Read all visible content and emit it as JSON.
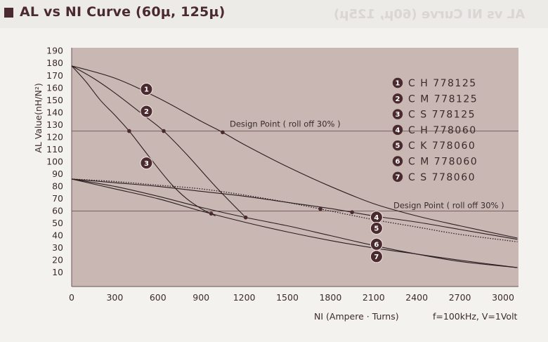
{
  "header": {
    "title": "AL vs NI Curve (60μ, 125μ)"
  },
  "colors": {
    "plot_bg": "#c9b7b4",
    "curve": "#2b1e20",
    "marker": "#4a2a2e",
    "header_mark": "#4a2a2e"
  },
  "chart_data": {
    "type": "line",
    "title": "AL vs NI Curve (60μ, 125μ)",
    "xlabel": "NI (Ampere · Turns)",
    "ylabel": "AL Value(nH/N²)",
    "xlim": [
      0,
      3100
    ],
    "ylim": [
      0,
      190
    ],
    "xticks": [
      "0",
      "300",
      "600",
      "900",
      "1200",
      "1500",
      "1800",
      "2100",
      "2400",
      "2700",
      "3000"
    ],
    "yticks": [
      "10",
      "20",
      "30",
      "40",
      "50",
      "60",
      "70",
      "80",
      "90",
      "100",
      "110",
      "120",
      "130",
      "140",
      "150",
      "160",
      "170",
      "180",
      "190"
    ],
    "grid": false,
    "conditions": "f=100kHz, V=1Volt",
    "design_points": [
      {
        "label": "Design Point ( roll off 30% )",
        "y": 125
      },
      {
        "label": "Design Point ( roll off 30% )",
        "y": 60
      }
    ],
    "legend": [
      {
        "num": "1",
        "text": "C H 778125"
      },
      {
        "num": "2",
        "text": "C M 778125"
      },
      {
        "num": "3",
        "text": "C S 778125"
      },
      {
        "num": "4",
        "text": "C H 778060"
      },
      {
        "num": "5",
        "text": "C K 778060"
      },
      {
        "num": "6",
        "text": "C M 778060"
      },
      {
        "num": "7",
        "text": "C S 778060"
      }
    ],
    "series": [
      {
        "id": "1",
        "style": "solid",
        "x": [
          0,
          300,
          600,
          900,
          1050,
          1200,
          1500,
          1800,
          2100,
          2400,
          2700,
          3100
        ],
        "y": [
          178,
          168,
          152,
          133,
          124,
          114,
          96,
          80,
          66,
          56,
          48,
          38
        ],
        "label_at": [
          520,
          159
        ],
        "marker_x": 1050
      },
      {
        "id": "2",
        "style": "solid",
        "x": [
          0,
          150,
          300,
          500,
          640,
          800,
          1000,
          1200
        ],
        "y": [
          178,
          168,
          156,
          138,
          125,
          106,
          80,
          56
        ],
        "label_at": [
          520,
          141
        ],
        "marker_x": 640
      },
      {
        "id": "3",
        "style": "solid",
        "x": [
          0,
          100,
          200,
          300,
          400,
          500,
          600,
          700,
          800,
          900,
          1000
        ],
        "y": [
          178,
          165,
          150,
          138,
          125,
          110,
          95,
          81,
          70,
          62,
          56
        ],
        "label_at": [
          520,
          99
        ],
        "marker_x": 400
      },
      {
        "id": "4",
        "style": "solid",
        "x": [
          0,
          300,
          600,
          900,
          1200,
          1500,
          1800,
          2100,
          2400,
          2700,
          3100
        ],
        "y": [
          86,
          83,
          80,
          76,
          72,
          67,
          62,
          56,
          51,
          45,
          37
        ],
        "label_at": [
          2120,
          55
        ],
        "marker_x": 1950
      },
      {
        "id": "5",
        "style": "dotted",
        "x": [
          0,
          300,
          600,
          900,
          1200,
          1500,
          1800,
          2100,
          2400,
          2700,
          3100
        ],
        "y": [
          86,
          84,
          81,
          78,
          73,
          67,
          60,
          53,
          47,
          41,
          35
        ],
        "label_at": [
          2120,
          46
        ],
        "marker_x": 1730
      },
      {
        "id": "6",
        "style": "solid",
        "x": [
          0,
          300,
          600,
          900,
          1200,
          1500,
          1800,
          2100,
          2400,
          2700,
          3100
        ],
        "y": [
          86,
          80,
          72,
          63,
          55,
          48,
          40,
          32,
          25,
          19,
          14
        ],
        "label_at": [
          2120,
          33
        ],
        "marker_x": 1210
      },
      {
        "id": "7",
        "style": "solid",
        "x": [
          0,
          300,
          600,
          900,
          1200,
          1500,
          1800,
          2100,
          2400,
          2700,
          3100
        ],
        "y": [
          86,
          78,
          70,
          60,
          51,
          43,
          36,
          30,
          25,
          20,
          14
        ],
        "label_at": [
          2120,
          23
        ],
        "marker_x": 970
      }
    ]
  }
}
